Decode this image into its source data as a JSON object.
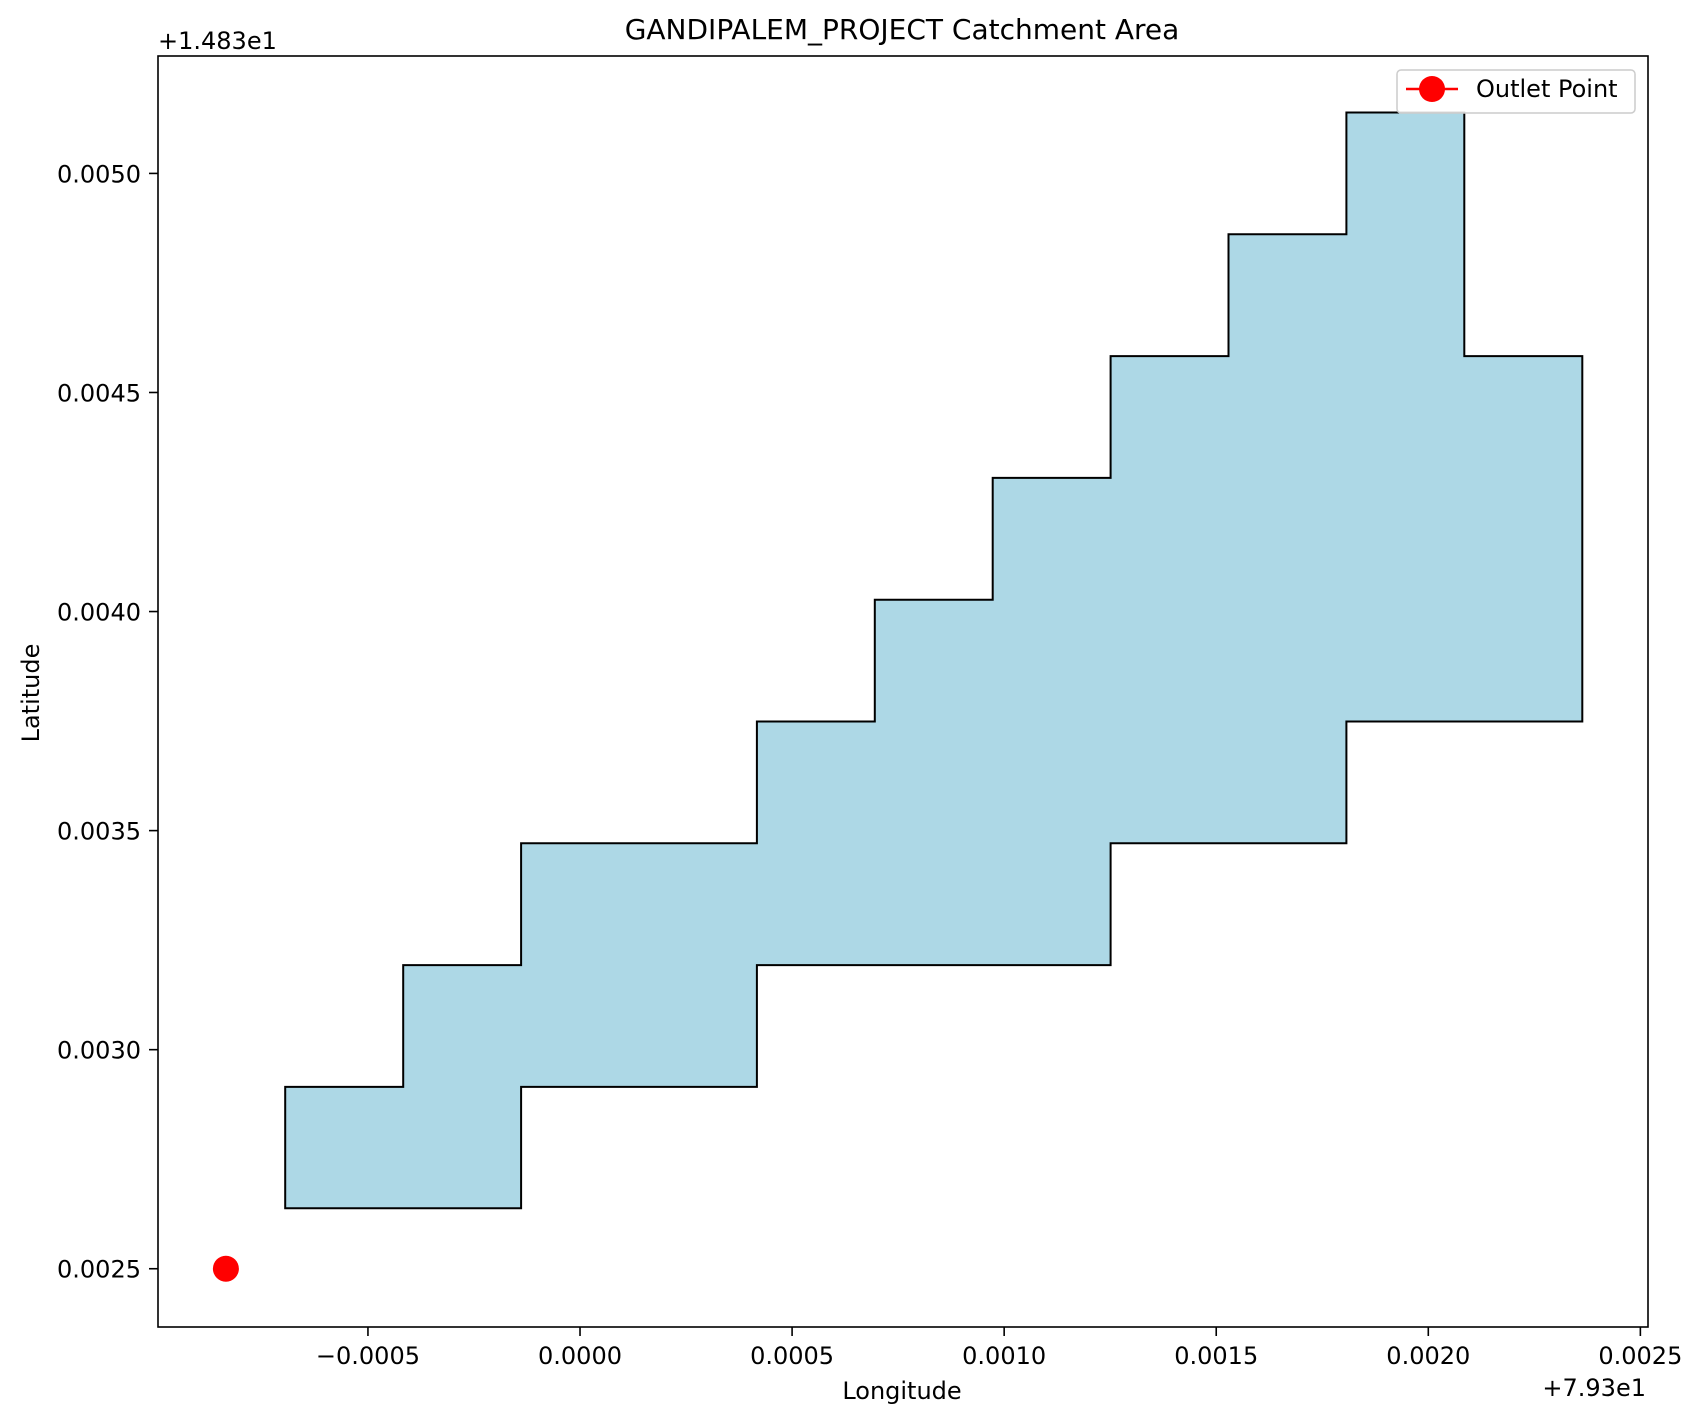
{
  "chart_data": {
    "type": "area",
    "title": "GANDIPALEM_PROJECT Catchment Area",
    "xlabel": "Longitude",
    "ylabel": "Latitude",
    "x_offset_text": "+7.93e1",
    "y_offset_text": "+1.483e1",
    "xlim": [
      -0.000995,
      0.002518
    ],
    "ylim": [
      0.002367,
      0.005268
    ],
    "x_ticks": [
      -0.0005,
      0.0,
      0.0005,
      0.001,
      0.0015,
      0.002,
      0.0025
    ],
    "x_tick_labels": [
      "−0.0005",
      "0.0000",
      "0.0005",
      "0.0010",
      "0.0015",
      "0.0020",
      "0.0025"
    ],
    "y_ticks": [
      0.0025,
      0.003,
      0.0035,
      0.004,
      0.0045,
      0.005
    ],
    "y_tick_labels": [
      "0.0025",
      "0.0030",
      "0.0035",
      "0.0040",
      "0.0045",
      "0.0050"
    ],
    "grid": false,
    "legend_position": "top-right",
    "catchment_polygon": {
      "fill_color": "#add8e6",
      "edge_color": "#000000",
      "points": [
        [
          -0.000695,
          0.002638
        ],
        [
          -0.000139,
          0.002638
        ],
        [
          -0.000139,
          0.002915
        ],
        [
          0.000417,
          0.002915
        ],
        [
          0.000417,
          0.003193
        ],
        [
          0.001251,
          0.003193
        ],
        [
          0.001251,
          0.003471
        ],
        [
          0.001807,
          0.003471
        ],
        [
          0.001807,
          0.003749
        ],
        [
          0.002363,
          0.003749
        ],
        [
          0.002363,
          0.004583
        ],
        [
          0.002085,
          0.004583
        ],
        [
          0.002085,
          0.005139
        ],
        [
          0.001807,
          0.005139
        ],
        [
          0.001807,
          0.004861
        ],
        [
          0.001529,
          0.004861
        ],
        [
          0.001529,
          0.004583
        ],
        [
          0.001251,
          0.004583
        ],
        [
          0.001251,
          0.004305
        ],
        [
          0.000973,
          0.004305
        ],
        [
          0.000973,
          0.004027
        ],
        [
          0.000695,
          0.004027
        ],
        [
          0.000695,
          0.003749
        ],
        [
          0.000417,
          0.003749
        ],
        [
          0.000417,
          0.003471
        ],
        [
          -0.000139,
          0.003471
        ],
        [
          -0.000139,
          0.003193
        ],
        [
          -0.000417,
          0.003193
        ],
        [
          -0.000417,
          0.002915
        ],
        [
          -0.000695,
          0.002915
        ]
      ]
    },
    "series": [
      {
        "name": "Outlet Point",
        "x": [
          -0.000835
        ],
        "y": [
          0.0025
        ],
        "color": "#ff0000",
        "marker": "circle"
      }
    ]
  }
}
